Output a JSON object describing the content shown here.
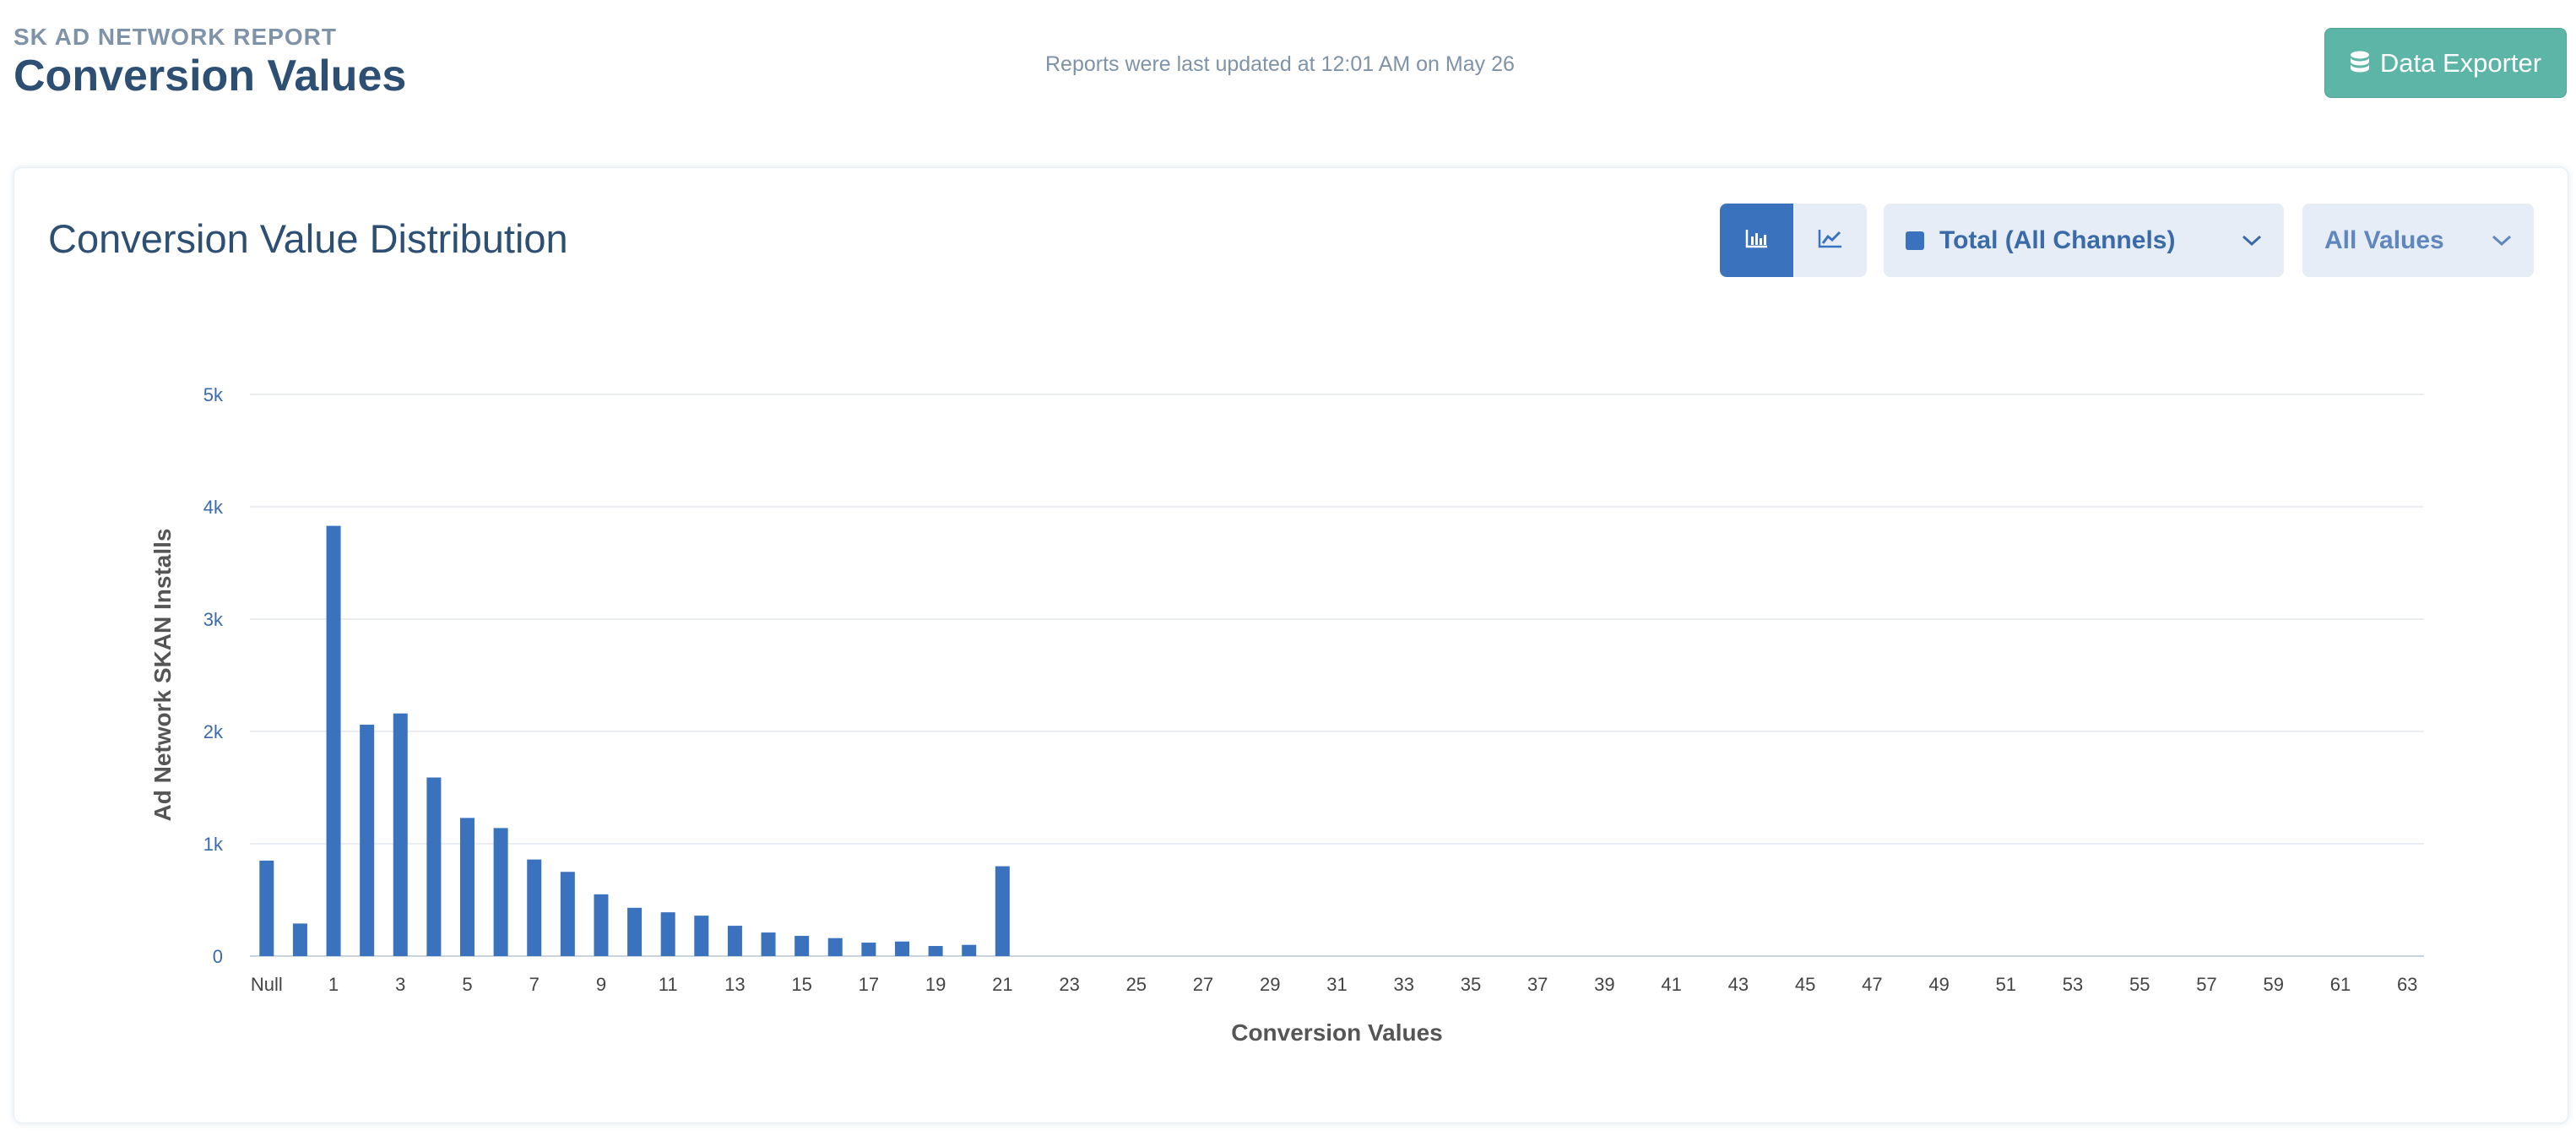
{
  "header": {
    "kicker": "SK AD NETWORK REPORT",
    "title": "Conversion Values",
    "updated_text": "Reports were last updated at 12:01 AM on May 26",
    "exporter_label": "Data Exporter"
  },
  "card": {
    "title": "Conversion Value Distribution",
    "view_toggle": {
      "active": "bar"
    },
    "channel_dropdown": "Total (All Channels)",
    "values_dropdown": "All Values"
  },
  "colors": {
    "accent": "#3a72bd",
    "exporter": "#5cb5a6",
    "title": "#2d4f73"
  },
  "chart_data": {
    "type": "bar",
    "xlabel": "Conversion Values",
    "ylabel": "Ad Network SKAN Installs",
    "ylim": [
      0,
      5000
    ],
    "yticks": [
      0,
      1000,
      2000,
      3000,
      4000,
      5000
    ],
    "ytick_labels": [
      "0",
      "1k",
      "2k",
      "3k",
      "4k",
      "5k"
    ],
    "grid": true,
    "categories": [
      "Null",
      "0",
      "1",
      "2",
      "3",
      "4",
      "5",
      "6",
      "7",
      "8",
      "9",
      "10",
      "11",
      "12",
      "13",
      "14",
      "15",
      "16",
      "17",
      "18",
      "19",
      "20",
      "21",
      "22",
      "23",
      "24",
      "25",
      "26",
      "27",
      "28",
      "29",
      "30",
      "31",
      "32",
      "33",
      "34",
      "35",
      "36",
      "37",
      "38",
      "39",
      "40",
      "41",
      "42",
      "43",
      "44",
      "45",
      "46",
      "47",
      "48",
      "49",
      "50",
      "51",
      "52",
      "53",
      "54",
      "55",
      "56",
      "57",
      "58",
      "59",
      "60",
      "61",
      "62",
      "63"
    ],
    "xtick_labels": [
      "Null",
      "",
      "1",
      "",
      "3",
      "",
      "5",
      "",
      "7",
      "",
      "9",
      "",
      "11",
      "",
      "13",
      "",
      "15",
      "",
      "17",
      "",
      "19",
      "",
      "21",
      "",
      "23",
      "",
      "25",
      "",
      "27",
      "",
      "29",
      "",
      "31",
      "",
      "33",
      "",
      "35",
      "",
      "37",
      "",
      "39",
      "",
      "41",
      "",
      "43",
      "",
      "45",
      "",
      "47",
      "",
      "49",
      "",
      "51",
      "",
      "53",
      "",
      "55",
      "",
      "57",
      "",
      "59",
      "",
      "61",
      "",
      "63"
    ],
    "values": [
      850,
      290,
      3830,
      2060,
      2160,
      1590,
      1230,
      1140,
      860,
      750,
      550,
      430,
      390,
      360,
      270,
      210,
      180,
      160,
      120,
      130,
      90,
      100,
      800,
      0,
      0,
      0,
      0,
      0,
      0,
      0,
      0,
      0,
      0,
      0,
      0,
      0,
      0,
      0,
      0,
      0,
      0,
      0,
      0,
      0,
      0,
      0,
      0,
      0,
      0,
      0,
      0,
      0,
      0,
      0,
      0,
      0,
      0,
      0,
      0,
      0,
      0,
      0,
      0,
      0,
      0
    ]
  }
}
